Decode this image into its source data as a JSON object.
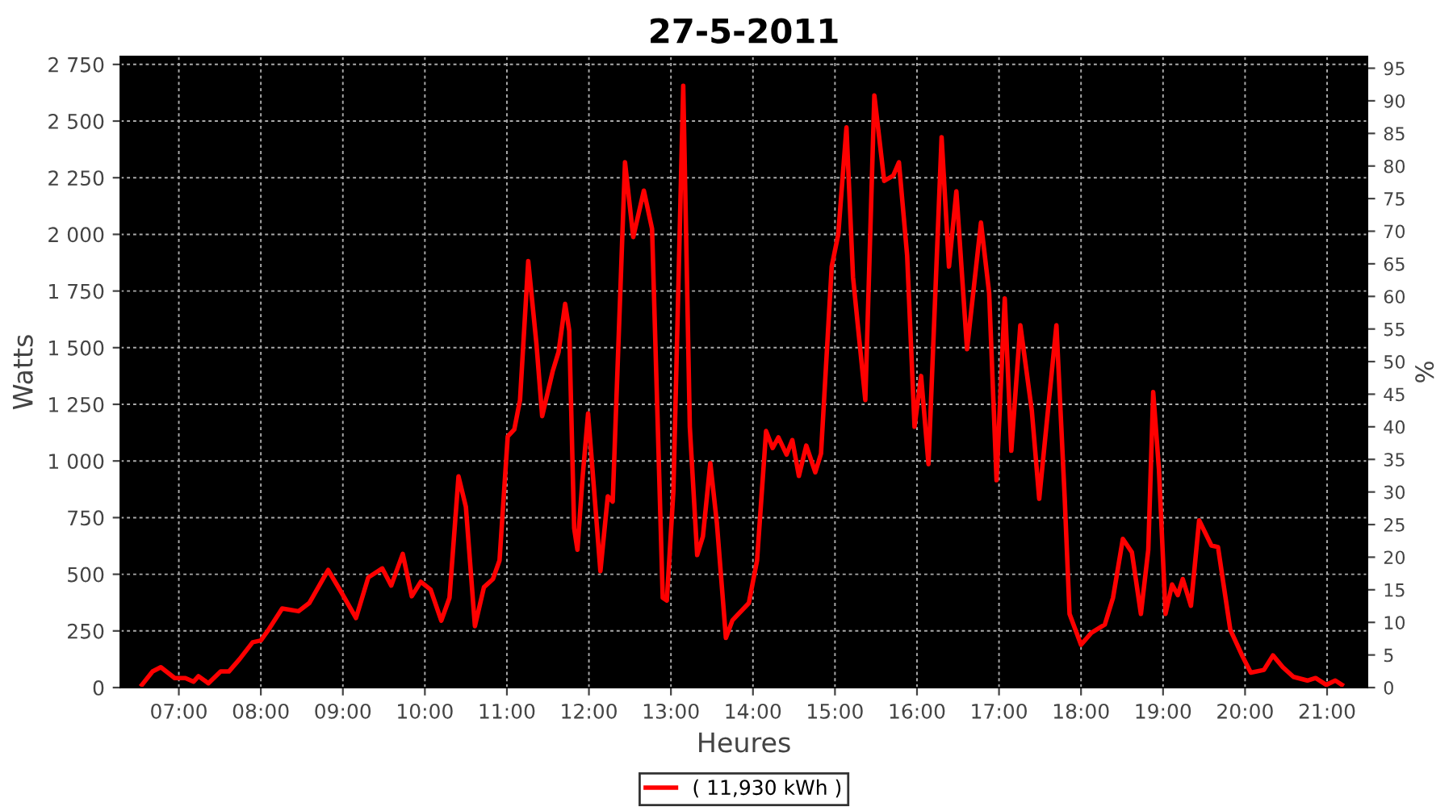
{
  "chart_data": {
    "type": "line",
    "title": "27-5-2011",
    "xlabel": "Heures",
    "ylabel": "Watts",
    "y2label": "%",
    "xlim": [
      6.29,
      21.49
    ],
    "xticks": [
      {
        "value": 7,
        "label": "07:00"
      },
      {
        "value": 8,
        "label": "08:00"
      },
      {
        "value": 9,
        "label": "09:00"
      },
      {
        "value": 10,
        "label": "10:00"
      },
      {
        "value": 11,
        "label": "11:00"
      },
      {
        "value": 12,
        "label": "12:00"
      },
      {
        "value": 13,
        "label": "13:00"
      },
      {
        "value": 14,
        "label": "14:00"
      },
      {
        "value": 15,
        "label": "15:00"
      },
      {
        "value": 16,
        "label": "16:00"
      },
      {
        "value": 17,
        "label": "17:00"
      },
      {
        "value": 18,
        "label": "18:00"
      },
      {
        "value": 19,
        "label": "19:00"
      },
      {
        "value": 20,
        "label": "20:00"
      },
      {
        "value": 21,
        "label": "21:00"
      }
    ],
    "ylim": [
      0,
      2785
    ],
    "yticks": [
      0,
      250,
      500,
      750,
      {
        "value": 1000,
        "label": "1 000"
      },
      {
        "value": 1250,
        "label": "1 250"
      },
      {
        "value": 1500,
        "label": "1 500"
      },
      {
        "value": 1750,
        "label": "1 750"
      },
      {
        "value": 2000,
        "label": "2 000"
      },
      {
        "value": 2250,
        "label": "2 250"
      },
      {
        "value": 2500,
        "label": "2 500"
      },
      {
        "value": 2750,
        "label": "2 750"
      }
    ],
    "y2lim": [
      0,
      96.8
    ],
    "y2ticks": [
      0,
      5,
      10,
      15,
      20,
      25,
      30,
      35,
      40,
      45,
      50,
      55,
      60,
      65,
      70,
      75,
      80,
      85,
      90,
      95
    ],
    "grid": true,
    "legend": "bottom",
    "marker": "none",
    "line_style": "solid",
    "series": [
      {
        "name": "( 11,930 kWh )",
        "color": "#ff0000",
        "x": [
          6.55,
          6.68,
          6.78,
          6.95,
          7.08,
          7.18,
          7.24,
          7.36,
          7.51,
          7.61,
          7.74,
          7.9,
          8.0,
          8.1,
          8.26,
          8.46,
          8.59,
          8.82,
          8.99,
          9.16,
          9.31,
          9.48,
          9.59,
          9.73,
          9.84,
          9.95,
          10.07,
          10.2,
          10.3,
          10.41,
          10.5,
          10.61,
          10.72,
          10.83,
          10.91,
          11.01,
          11.09,
          11.16,
          11.26,
          11.36,
          11.43,
          11.56,
          11.63,
          11.71,
          11.76,
          11.82,
          11.86,
          11.92,
          11.99,
          12.14,
          12.23,
          12.29,
          12.44,
          12.54,
          12.67,
          12.77,
          12.9,
          12.95,
          13.03,
          13.15,
          13.23,
          13.32,
          13.39,
          13.48,
          13.56,
          13.67,
          13.75,
          13.95,
          14.05,
          14.16,
          14.24,
          14.31,
          14.41,
          14.48,
          14.56,
          14.65,
          14.76,
          14.83,
          14.96,
          15.04,
          15.14,
          15.22,
          15.37,
          15.48,
          15.6,
          15.71,
          15.78,
          15.88,
          15.97,
          16.05,
          16.14,
          16.3,
          16.39,
          16.48,
          16.61,
          16.78,
          16.88,
          16.97,
          17.07,
          17.15,
          17.26,
          17.4,
          17.49,
          17.7,
          17.8,
          17.86,
          18.0,
          18.13,
          18.29,
          18.39,
          18.51,
          18.62,
          18.73,
          18.82,
          18.88,
          18.95,
          19.03,
          19.11,
          19.18,
          19.24,
          19.34,
          19.44,
          19.59,
          19.67,
          19.82,
          19.97,
          20.07,
          20.23,
          20.34,
          20.46,
          20.59,
          20.76,
          20.86,
          20.99,
          21.1,
          21.18
        ],
        "values": [
          12,
          71,
          90,
          42,
          42,
          26,
          50,
          19,
          71,
          71,
          125,
          200,
          208,
          259,
          349,
          337,
          373,
          519,
          415,
          307,
          486,
          526,
          450,
          590,
          403,
          467,
          432,
          295,
          396,
          932,
          797,
          271,
          443,
          479,
          561,
          1108,
          1139,
          1269,
          1882,
          1517,
          1198,
          1398,
          1481,
          1693,
          1575,
          703,
          608,
          915,
          1210,
          514,
          844,
          821,
          2318,
          1988,
          2193,
          2024,
          396,
          384,
          868,
          2656,
          1151,
          585,
          667,
          991,
          726,
          219,
          297,
          373,
          561,
          1132,
          1057,
          1104,
          1028,
          1092,
          934,
          1068,
          950,
          1033,
          1858,
          2000,
          2472,
          1811,
          1269,
          2613,
          2236,
          2259,
          2318,
          1906,
          1151,
          1375,
          986,
          2429,
          1858,
          2190,
          1493,
          2052,
          1741,
          915,
          1717,
          1045,
          1599,
          1222,
          833,
          1599,
          844,
          325,
          189,
          243,
          278,
          396,
          656,
          597,
          325,
          608,
          1304,
          962,
          325,
          455,
          408,
          479,
          361,
          738,
          627,
          620,
          255,
          137,
          66,
          78,
          142,
          90,
          47,
          31,
          42,
          12,
          31,
          12
        ]
      }
    ]
  }
}
